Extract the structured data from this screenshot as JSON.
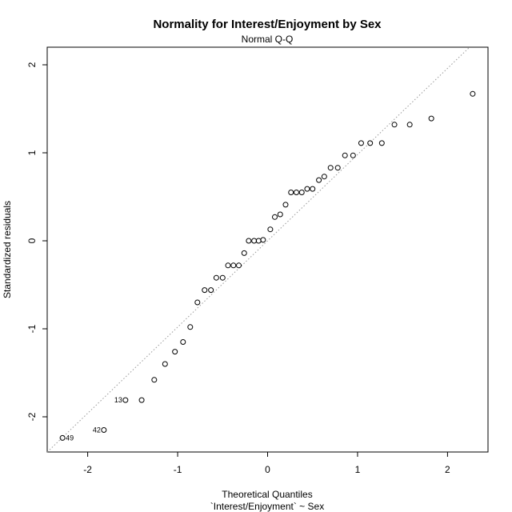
{
  "chart_data": {
    "type": "scatter",
    "title": "Normality for Interest/Enjoyment by Sex",
    "subtitle": "Normal Q-Q",
    "xlabel": "Theoretical Quantiles",
    "xlabel2": "`Interest/Enjoyment` ~ Sex",
    "ylabel": "Standardized residuals",
    "xlim": [
      -2.45,
      2.45
    ],
    "ylim": [
      -2.4,
      2.2
    ],
    "xticks": [
      -2,
      -1,
      0,
      1,
      2
    ],
    "yticks": [
      -2,
      -1,
      0,
      1,
      2
    ],
    "grid": false,
    "reference_line": {
      "style": "dotted",
      "color": "#999999",
      "intercept": 0.0,
      "slope": 0.98
    },
    "points": [
      {
        "x": -2.28,
        "y": -2.24,
        "label": "49"
      },
      {
        "x": -1.82,
        "y": -2.15,
        "label": "42"
      },
      {
        "x": -1.58,
        "y": -1.81,
        "label": "13"
      },
      {
        "x": -1.4,
        "y": -1.81
      },
      {
        "x": -1.26,
        "y": -1.58
      },
      {
        "x": -1.14,
        "y": -1.4
      },
      {
        "x": -1.03,
        "y": -1.26
      },
      {
        "x": -0.94,
        "y": -1.15
      },
      {
        "x": -0.86,
        "y": -0.98
      },
      {
        "x": -0.78,
        "y": -0.7
      },
      {
        "x": -0.7,
        "y": -0.56
      },
      {
        "x": -0.63,
        "y": -0.56
      },
      {
        "x": -0.57,
        "y": -0.42
      },
      {
        "x": -0.5,
        "y": -0.42
      },
      {
        "x": -0.44,
        "y": -0.28
      },
      {
        "x": -0.38,
        "y": -0.28
      },
      {
        "x": -0.32,
        "y": -0.28
      },
      {
        "x": -0.26,
        "y": -0.14
      },
      {
        "x": -0.21,
        "y": 0.0
      },
      {
        "x": -0.15,
        "y": 0.0
      },
      {
        "x": -0.1,
        "y": 0.0
      },
      {
        "x": -0.05,
        "y": 0.01
      },
      {
        "x": 0.03,
        "y": 0.13
      },
      {
        "x": 0.08,
        "y": 0.27
      },
      {
        "x": 0.14,
        "y": 0.3
      },
      {
        "x": 0.2,
        "y": 0.41
      },
      {
        "x": 0.26,
        "y": 0.55
      },
      {
        "x": 0.32,
        "y": 0.55
      },
      {
        "x": 0.38,
        "y": 0.55
      },
      {
        "x": 0.44,
        "y": 0.59
      },
      {
        "x": 0.5,
        "y": 0.59
      },
      {
        "x": 0.57,
        "y": 0.69
      },
      {
        "x": 0.63,
        "y": 0.73
      },
      {
        "x": 0.7,
        "y": 0.83
      },
      {
        "x": 0.78,
        "y": 0.83
      },
      {
        "x": 0.86,
        "y": 0.97
      },
      {
        "x": 0.95,
        "y": 0.97
      },
      {
        "x": 1.04,
        "y": 1.11
      },
      {
        "x": 1.14,
        "y": 1.11
      },
      {
        "x": 1.27,
        "y": 1.11
      },
      {
        "x": 1.41,
        "y": 1.32
      },
      {
        "x": 1.58,
        "y": 1.32
      },
      {
        "x": 1.82,
        "y": 1.39
      },
      {
        "x": 2.28,
        "y": 1.67
      }
    ]
  }
}
